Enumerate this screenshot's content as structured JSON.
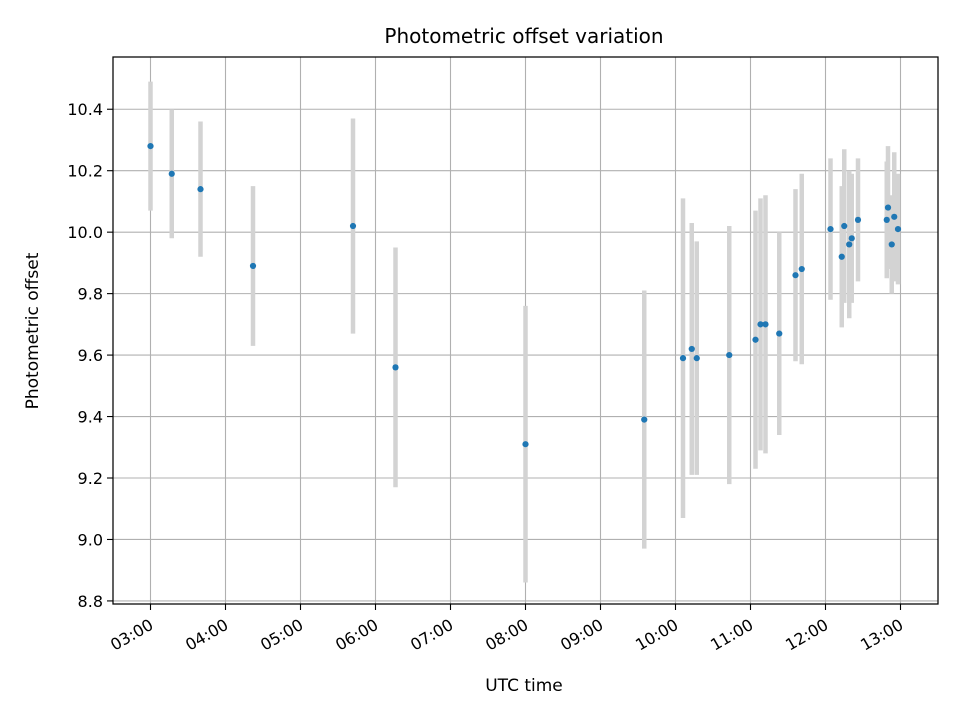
{
  "chart_data": {
    "type": "scatter",
    "title": "Photometric offset variation",
    "xlabel": "UTC time",
    "ylabel": "Photometric offset",
    "xlim": [
      "02:30",
      "13:30"
    ],
    "ylim": [
      8.79,
      10.57
    ],
    "grid": true,
    "x_ticks": [
      "03:00",
      "04:00",
      "05:00",
      "06:00",
      "07:00",
      "08:00",
      "09:00",
      "10:00",
      "11:00",
      "12:00",
      "13:00"
    ],
    "y_ticks": [
      "8.8",
      "9.0",
      "9.2",
      "9.4",
      "9.6",
      "9.8",
      "10.0",
      "10.2",
      "10.4"
    ],
    "point_color": "#1f77b4",
    "errorbar_color": "#d3d3d3",
    "points": [
      {
        "x": "03:00",
        "y": 10.28,
        "err": 0.21
      },
      {
        "x": "03:17",
        "y": 10.19,
        "err": 0.21
      },
      {
        "x": "03:40",
        "y": 10.14,
        "err": 0.22
      },
      {
        "x": "04:22",
        "y": 9.89,
        "err": 0.26
      },
      {
        "x": "05:42",
        "y": 10.02,
        "err": 0.35
      },
      {
        "x": "06:16",
        "y": 9.56,
        "err": 0.39
      },
      {
        "x": "08:00",
        "y": 9.31,
        "err": 0.45
      },
      {
        "x": "09:35",
        "y": 9.39,
        "err": 0.42
      },
      {
        "x": "10:06",
        "y": 9.59,
        "err": 0.52
      },
      {
        "x": "10:13",
        "y": 9.62,
        "err": 0.41
      },
      {
        "x": "10:17",
        "y": 9.59,
        "err": 0.38
      },
      {
        "x": "10:43",
        "y": 9.6,
        "err": 0.42
      },
      {
        "x": "11:04",
        "y": 9.65,
        "err": 0.42
      },
      {
        "x": "11:08",
        "y": 9.7,
        "err": 0.41
      },
      {
        "x": "11:12",
        "y": 9.7,
        "err": 0.42
      },
      {
        "x": "11:23",
        "y": 9.67,
        "err": 0.33
      },
      {
        "x": "11:36",
        "y": 9.86,
        "err": 0.28
      },
      {
        "x": "11:41",
        "y": 9.88,
        "err": 0.31
      },
      {
        "x": "12:04",
        "y": 10.01,
        "err": 0.23
      },
      {
        "x": "12:13",
        "y": 9.92,
        "err": 0.23
      },
      {
        "x": "12:15",
        "y": 10.02,
        "err": 0.25
      },
      {
        "x": "12:19",
        "y": 9.96,
        "err": 0.24
      },
      {
        "x": "12:21",
        "y": 9.98,
        "err": 0.21
      },
      {
        "x": "12:26",
        "y": 10.04,
        "err": 0.2
      },
      {
        "x": "12:49",
        "y": 10.04,
        "err": 0.19
      },
      {
        "x": "12:50",
        "y": 10.08,
        "err": 0.2
      },
      {
        "x": "12:53",
        "y": 9.96,
        "err": 0.16
      },
      {
        "x": "12:55",
        "y": 10.05,
        "err": 0.21
      },
      {
        "x": "12:58",
        "y": 10.01,
        "err": 0.18
      }
    ]
  }
}
